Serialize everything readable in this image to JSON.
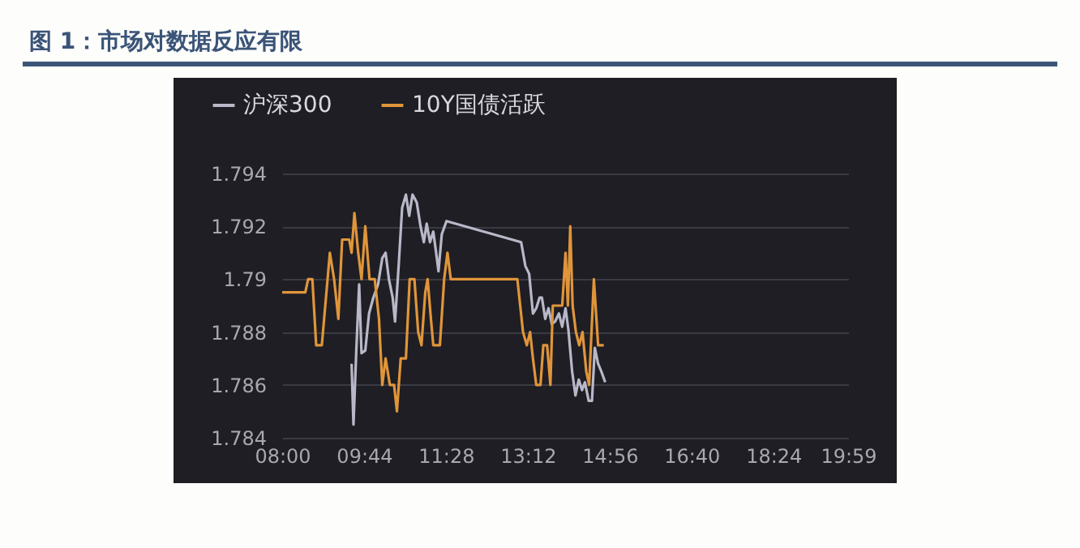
{
  "chart_data": {
    "type": "line",
    "title": "图 1：市场对数据反应有限",
    "xlim": [
      8,
      19.9833
    ],
    "xticks": [
      {
        "value": 8,
        "label": "08:00"
      },
      {
        "value": 9.7333,
        "label": "09:44"
      },
      {
        "value": 11.4667,
        "label": "11:28"
      },
      {
        "value": 13.2,
        "label": "13:12"
      },
      {
        "value": 14.9333,
        "label": "14:56"
      },
      {
        "value": 16.6667,
        "label": "16:40"
      },
      {
        "value": 18.4,
        "label": "18:24"
      },
      {
        "value": 19.9833,
        "label": "19:59"
      }
    ],
    "ylim": [
      1.784,
      1.794
    ],
    "yticks": [
      1.784,
      1.786,
      1.788,
      1.79,
      1.792,
      1.794
    ],
    "grid": "y",
    "legend": "top left",
    "line_style": "solid",
    "marker": "none",
    "series": [
      {
        "name": "沪深300",
        "color": "#b8b8c8",
        "x": [
          9.47,
          9.51,
          9.57,
          9.63,
          9.68,
          9.76,
          9.84,
          9.93,
          10.03,
          10.12,
          10.19,
          10.26,
          10.34,
          10.39,
          10.47,
          10.54,
          10.62,
          10.69,
          10.76,
          10.85,
          10.93,
          11.0,
          11.06,
          11.13,
          11.2,
          11.26,
          11.31,
          11.38,
          11.48,
          13.06,
          13.15,
          13.23,
          13.31,
          13.38,
          13.45,
          13.5,
          13.57,
          13.64,
          13.71,
          13.78,
          13.86,
          13.93,
          14.0,
          14.06,
          14.14,
          14.21,
          14.28,
          14.35,
          14.41,
          14.49,
          14.56,
          14.62,
          14.69,
          14.76,
          14.84
        ],
        "values": [
          1.7868,
          1.7845,
          1.7873,
          1.7898,
          1.7872,
          1.7873,
          1.7887,
          1.7893,
          1.7898,
          1.7908,
          1.791,
          1.79,
          1.7893,
          1.7884,
          1.7906,
          1.7927,
          1.7932,
          1.7924,
          1.7932,
          1.7929,
          1.792,
          1.7914,
          1.7921,
          1.7914,
          1.7918,
          1.791,
          1.7903,
          1.7917,
          1.7922,
          1.7914,
          1.7905,
          1.7902,
          1.7887,
          1.7889,
          1.7893,
          1.7893,
          1.7885,
          1.7889,
          1.7883,
          1.7884,
          1.7887,
          1.7882,
          1.7889,
          1.7881,
          1.7865,
          1.7856,
          1.7862,
          1.7858,
          1.7861,
          1.7854,
          1.7854,
          1.7874,
          1.7868,
          1.7865,
          1.7861
        ]
      },
      {
        "name": "10Y国债活跃",
        "color": "#e0953a",
        "x": [
          8.0,
          8.49,
          8.55,
          8.64,
          8.72,
          8.84,
          9.01,
          9.1,
          9.19,
          9.27,
          9.42,
          9.47,
          9.53,
          9.61,
          9.68,
          9.76,
          9.85,
          9.96,
          10.05,
          10.12,
          10.19,
          10.28,
          10.37,
          10.43,
          10.51,
          10.62,
          10.7,
          10.8,
          10.88,
          10.95,
          11.03,
          11.08,
          11.15,
          11.2,
          11.34,
          11.43,
          11.5,
          11.57,
          12.98,
          13.1,
          13.18,
          13.25,
          13.31,
          13.38,
          13.47,
          13.53,
          13.61,
          13.68,
          13.73,
          13.93,
          14.0,
          14.05,
          14.1,
          14.15,
          14.22,
          14.29,
          14.36,
          14.44,
          14.5,
          14.6,
          14.69,
          14.81
        ],
        "values": [
          1.7895,
          1.7895,
          1.79,
          1.79,
          1.7875,
          1.7875,
          1.791,
          1.79,
          1.7885,
          1.7915,
          1.7915,
          1.791,
          1.7925,
          1.791,
          1.79,
          1.792,
          1.79,
          1.79,
          1.7885,
          1.786,
          1.787,
          1.786,
          1.786,
          1.785,
          1.787,
          1.787,
          1.79,
          1.79,
          1.788,
          1.7875,
          1.7895,
          1.79,
          1.7885,
          1.7875,
          1.7875,
          1.79,
          1.791,
          1.79,
          1.79,
          1.788,
          1.7875,
          1.788,
          1.787,
          1.786,
          1.786,
          1.7875,
          1.7875,
          1.786,
          1.789,
          1.789,
          1.791,
          1.789,
          1.792,
          1.789,
          1.788,
          1.7875,
          1.788,
          1.7865,
          1.786,
          1.79,
          1.7875,
          1.7875
        ]
      }
    ]
  }
}
